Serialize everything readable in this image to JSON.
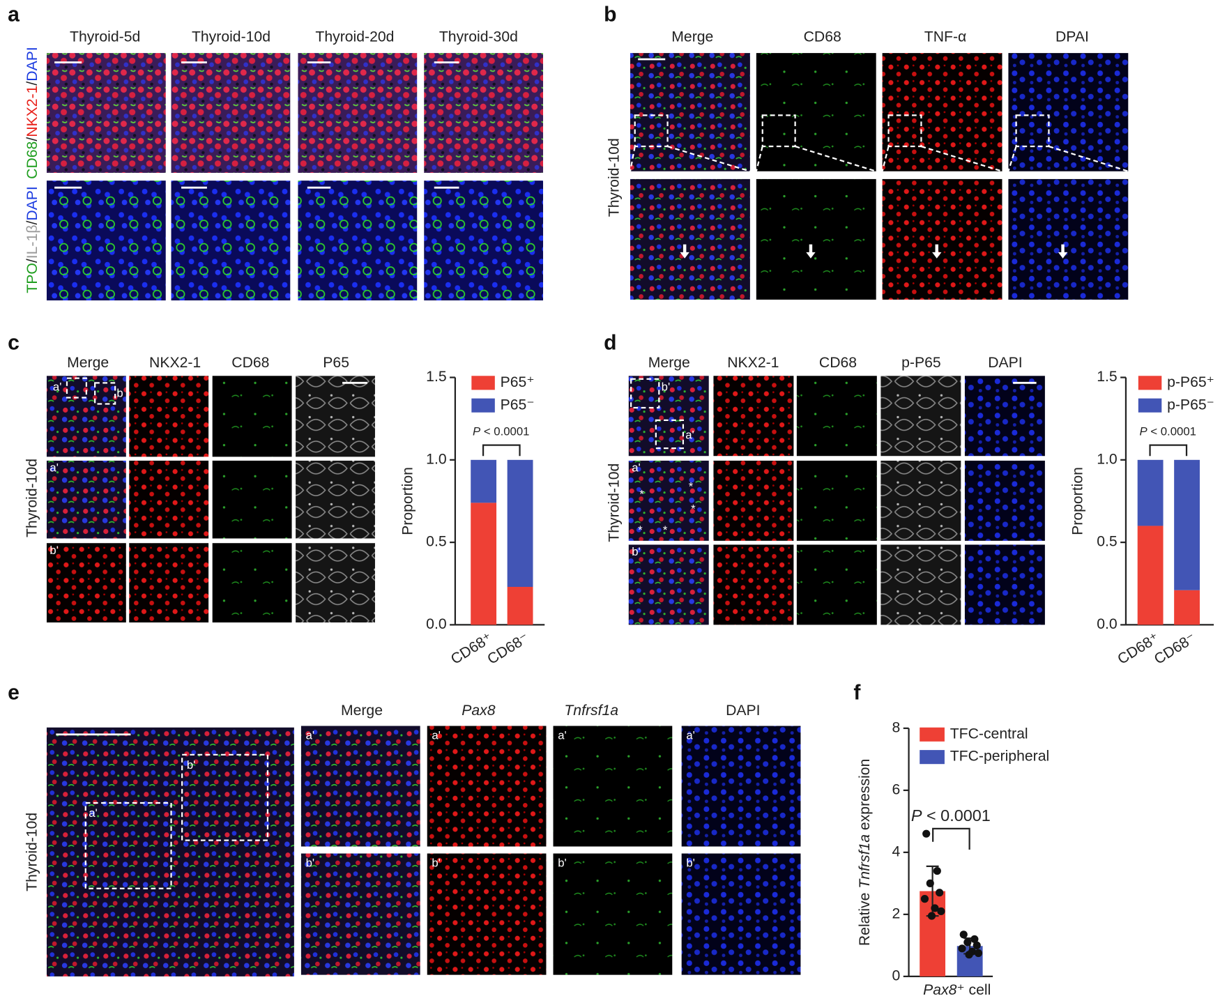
{
  "panel_labels": [
    "a",
    "b",
    "c",
    "d",
    "e",
    "f"
  ],
  "panel_a": {
    "columns": [
      "Thyroid-5d",
      "Thyroid-10d",
      "Thyroid-20d",
      "Thyroid-30d"
    ],
    "row_labels": [
      [
        "CD68",
        "/",
        "NKX2-1",
        "/",
        "DAPI"
      ],
      [
        "TPO",
        "/",
        "IL-1β",
        "/",
        "DAPI"
      ]
    ],
    "row_label_colors": [
      [
        "#1f9e1f",
        "#222222",
        "#e8231c",
        "#222222",
        "#1c3ce0"
      ],
      [
        "#1f9e1f",
        "#222222",
        "#9a9a9a",
        "#222222",
        "#1c3ce0"
      ]
    ]
  },
  "panel_b": {
    "columns": [
      "Merge",
      "CD68",
      "TNF-α",
      "DPAI"
    ],
    "column_colors": [
      "#222222",
      "#1f9e1f",
      "#e8231c",
      "#1c3ce0"
    ],
    "row_label": "Thyroid-10d"
  },
  "panel_c": {
    "columns": [
      "Merge",
      "NKX2-1",
      "CD68",
      "P65"
    ],
    "column_colors": [
      "#222222",
      "#e8231c",
      "#1f9e1f",
      "#9a9a9a"
    ],
    "row_label": "Thyroid-10d",
    "box_labels": [
      "a'",
      "b"
    ],
    "row_tags": [
      "a'",
      "b'"
    ]
  },
  "panel_d": {
    "columns": [
      "Merge",
      "NKX2-1",
      "CD68",
      "p-P65",
      "DAPI"
    ],
    "column_colors": [
      "#222222",
      "#e8231c",
      "#1f9e1f",
      "#9a9a9a",
      "#1c3ce0"
    ],
    "row_label": "Thyroid-10d",
    "box_labels": [
      "b'",
      "a'"
    ],
    "row_tags": [
      "a'",
      "b'"
    ],
    "asterisk": "*"
  },
  "panel_e": {
    "columns": [
      "Merge",
      "Pax8",
      "Tnfrsf1a",
      "DAPI"
    ],
    "column_colors": [
      "#222222",
      "#e8231c",
      "#1f9e1f",
      "#1c3ce0"
    ],
    "column_italic": [
      false,
      true,
      true,
      false
    ],
    "row_label": "Thyroid-10d",
    "box_labels": [
      "a'",
      "b'"
    ],
    "row_tags": [
      "a'",
      "b'"
    ]
  },
  "chart_data": [
    {
      "type": "bar",
      "stacked": true,
      "y_label": "Proportion",
      "categories": [
        "CD68⁺",
        "CD68⁻"
      ],
      "series": [
        {
          "name": "P65⁺",
          "color": "#ee4035",
          "values": [
            0.74,
            0.23
          ]
        },
        {
          "name": "P65⁻",
          "color": "#4255b5",
          "values": [
            0.26,
            0.77
          ]
        }
      ],
      "ylim": [
        0,
        1.5
      ],
      "yticks": [
        {
          "value": 0,
          "label": "0.0"
        },
        0.5,
        {
          "value": 1,
          "label": "1.0"
        },
        1.5
      ],
      "annotation": "P < 0.0001"
    },
    {
      "type": "bar",
      "stacked": true,
      "y_label": "Proportion",
      "categories": [
        "CD68⁺",
        "CD68⁻"
      ],
      "series": [
        {
          "name": "p-P65⁺",
          "color": "#ee4035",
          "values": [
            0.6,
            0.21
          ]
        },
        {
          "name": "p-P65⁻",
          "color": "#4255b5",
          "values": [
            0.4,
            0.79
          ]
        }
      ],
      "ylim": [
        0,
        1.5
      ],
      "yticks": [
        {
          "value": 0,
          "label": "0.0"
        },
        0.5,
        {
          "value": 1,
          "label": "1.0"
        },
        1.5
      ],
      "annotation": "P < 0.0001"
    },
    {
      "type": "bar",
      "stacked": false,
      "y_label": [
        "Relative ",
        "Tnfrsf1a",
        " expression"
      ],
      "y_label_italic": [
        false,
        true,
        false
      ],
      "x_label": [
        "Pax8",
        "⁺ cell"
      ],
      "x_label_italic": [
        true,
        false
      ],
      "series": [
        {
          "name": "TFC-central",
          "color": "#ee4035",
          "values": [
            2.75
          ],
          "errors": [
            0.8
          ],
          "points": [
            4.6,
            3.4,
            3.0,
            2.7,
            2.5,
            2.2,
            2.1,
            1.95
          ]
        },
        {
          "name": "TFC-peripheral",
          "color": "#4255b5",
          "values": [
            0.98
          ],
          "errors": [
            0.25
          ],
          "points": [
            1.35,
            1.2,
            1.1,
            1.0,
            0.9,
            0.8,
            0.75,
            0.7
          ]
        }
      ],
      "ylim": [
        0,
        8
      ],
      "yticks": [
        0,
        2,
        4,
        6,
        8
      ],
      "annotation": "P < 0.0001"
    }
  ]
}
